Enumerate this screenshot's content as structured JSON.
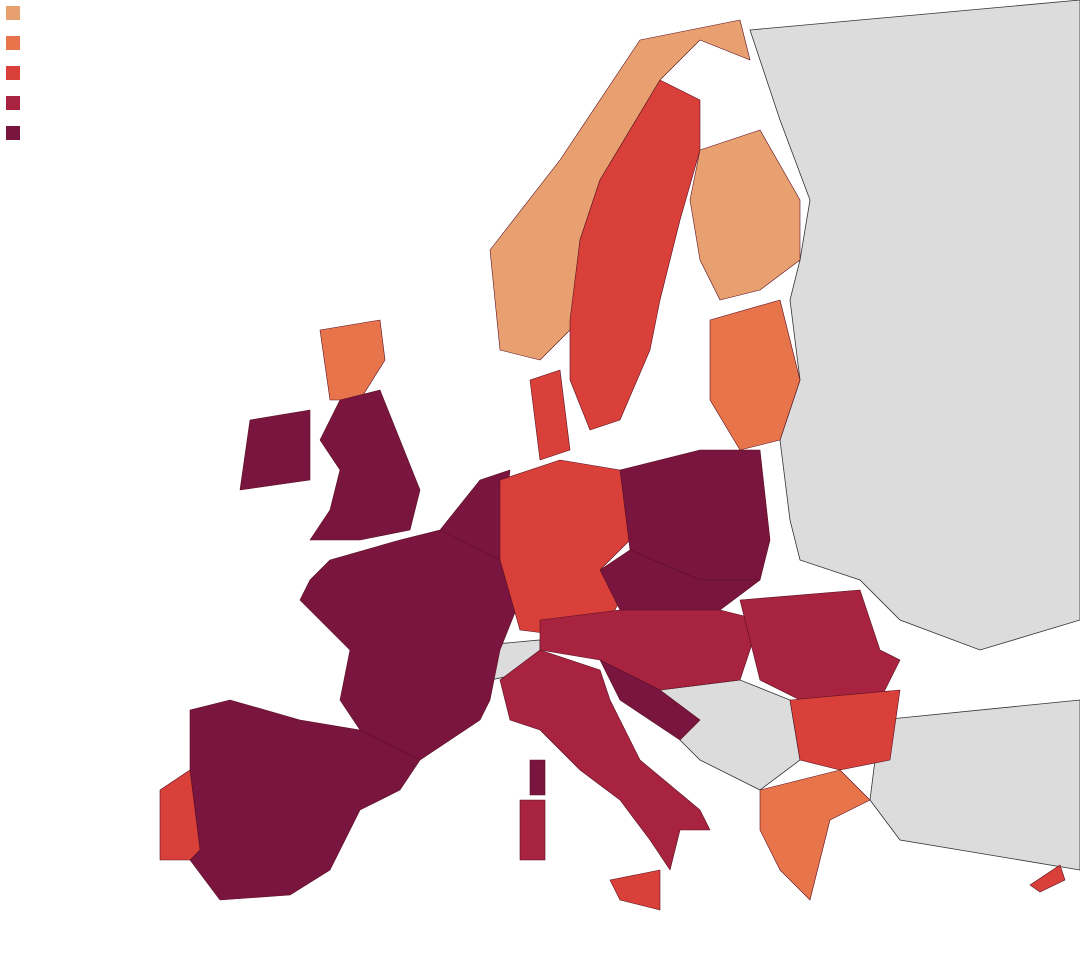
{
  "map": {
    "legend": {
      "colors": [
        "#e8a070",
        "#e8744c",
        "#d9403a",
        "#a82340",
        "#7a1540"
      ]
    }
  }
}
